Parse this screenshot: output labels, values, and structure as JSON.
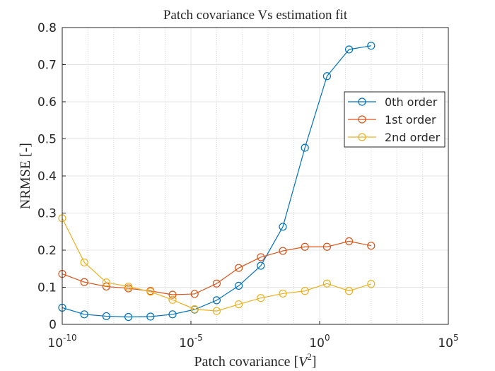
{
  "chart_data": {
    "type": "line",
    "title": "Patch covariance Vs estimation fit",
    "xlabel_parts": [
      "Patch covariance [",
      "V",
      "2",
      "]"
    ],
    "ylabel": "NRMSE [-]",
    "xscale": "log",
    "xlim": [
      1e-10,
      100000
    ],
    "ylim": [
      0,
      0.8
    ],
    "xticks": [
      {
        "value": 1e-10,
        "label": "10",
        "exponent": "-10"
      },
      {
        "value": 1e-05,
        "label": "10",
        "exponent": "-5"
      },
      {
        "value": 1,
        "label": "10",
        "exponent": "0"
      },
      {
        "value": 100000,
        "label": "10",
        "exponent": "5"
      }
    ],
    "yticks": [
      0,
      0.1,
      0.2,
      0.3,
      0.4,
      0.5,
      0.6,
      0.7,
      0.8
    ],
    "grid": true,
    "minor_grid": true,
    "legend_location": "northeast",
    "marker": "circle",
    "x": [
      1e-10,
      7.197e-10,
      5.179e-09,
      3.728e-08,
      2.683e-07,
      1.931e-06,
      1.389e-05,
      0.0001,
      0.0007197,
      0.005179,
      0.03728,
      0.2683,
      1.931,
      13.89,
      100
    ],
    "series": [
      {
        "name": "0th order",
        "color": "#0072BD",
        "values": [
          0.045,
          0.027,
          0.022,
          0.02,
          0.021,
          0.027,
          0.04,
          0.065,
          0.104,
          0.158,
          0.263,
          0.476,
          0.669,
          0.741,
          0.751
        ]
      },
      {
        "name": "1st order",
        "color": "#D95319",
        "values": [
          0.136,
          0.114,
          0.102,
          0.097,
          0.09,
          0.08,
          0.082,
          0.11,
          0.152,
          0.181,
          0.198,
          0.209,
          0.209,
          0.224,
          0.212
        ]
      },
      {
        "name": "2nd order",
        "color": "#EDB120",
        "values": [
          0.286,
          0.167,
          0.113,
          0.102,
          0.088,
          0.066,
          0.041,
          0.036,
          0.054,
          0.071,
          0.083,
          0.09,
          0.11,
          0.09,
          0.109
        ]
      }
    ]
  }
}
